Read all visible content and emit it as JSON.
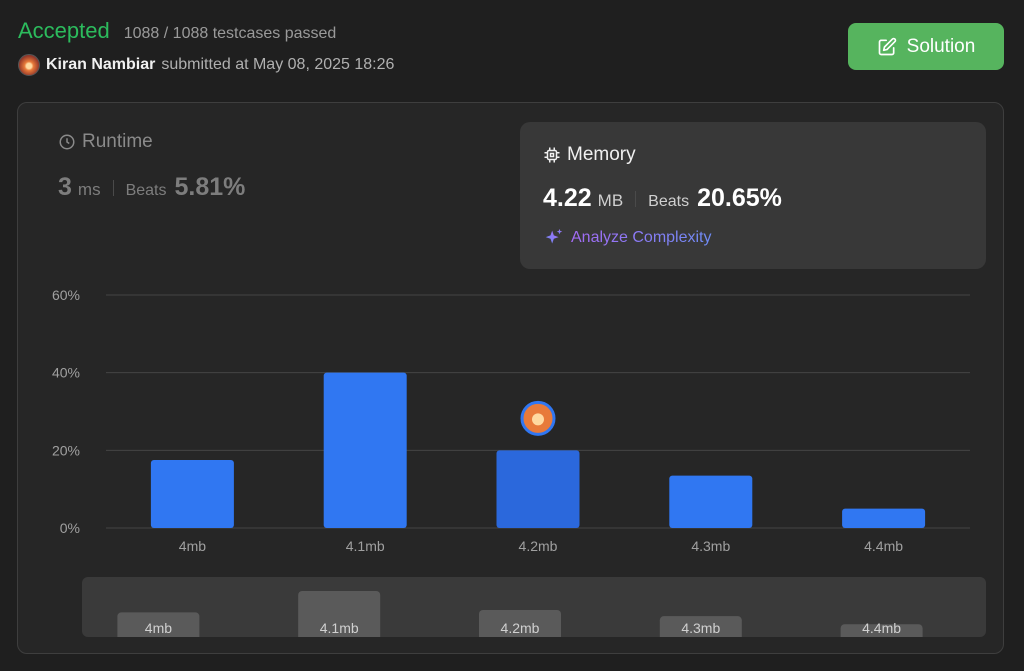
{
  "header": {
    "status": "Accepted",
    "testcases": "1088 / 1088 testcases passed",
    "user_name": "Kiran Nambiar",
    "submitted_text": "submitted at May 08, 2025 18:26"
  },
  "solution_button": {
    "label": "Solution",
    "color": "#56b45e"
  },
  "runtime": {
    "title": "Runtime",
    "value": "3",
    "unit": "ms",
    "beats_label": "Beats",
    "beats_value": "5.81%"
  },
  "memory": {
    "title": "Memory",
    "value": "4.22",
    "unit": "MB",
    "beats_label": "Beats",
    "beats_value": "20.65%"
  },
  "analyze": {
    "label": "Analyze Complexity"
  },
  "chart_data": {
    "type": "bar",
    "categories": [
      "4mb",
      "4.1mb",
      "4.2mb",
      "4.3mb",
      "4.4mb"
    ],
    "values": [
      17.5,
      40,
      20,
      13.5,
      5
    ],
    "y_ticks": [
      "60%",
      "40%",
      "20%",
      "0%"
    ],
    "y_tick_values": [
      60,
      40,
      20,
      0
    ],
    "ylim": [
      0,
      60
    ],
    "highlight_index": 2,
    "bar_color": "#3077f2",
    "highlight_color": "#2b68dc",
    "grid": true
  },
  "mini_chart": {
    "categories": [
      "4mb",
      "4.1mb",
      "4.2mb",
      "4.3mb",
      "4.4mb"
    ],
    "values": [
      17.5,
      40,
      20,
      13.5,
      5
    ]
  }
}
